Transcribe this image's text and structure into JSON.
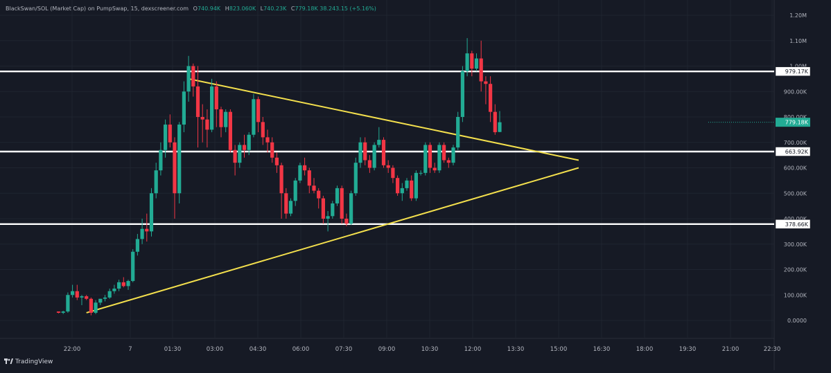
{
  "header": {
    "title": "BlackSwan/SOL (Market Cap) on PumpSwap, 15, dexscreener.com",
    "o_label": "O",
    "o_value": "740.94K",
    "h_label": "H",
    "h_value": "823.060K",
    "l_label": "L",
    "l_value": "740.23K",
    "c_label": "C",
    "c_value": "779.18K",
    "change": "38.243.15 (+5.16%)"
  },
  "brand": {
    "label": "TradingView"
  },
  "colors": {
    "background": "#161a25",
    "up": "#22ab94",
    "down": "#f23645",
    "level_line": "#ffffff",
    "trend_line": "#f4e04d",
    "current_price_bg": "#22ab94"
  },
  "chart_data": {
    "type": "candlestick",
    "interval": "15",
    "y_axis": {
      "scale": "linear",
      "range": [
        -60000,
        1250000
      ],
      "ticks": [
        0,
        100000,
        200000,
        300000,
        400000,
        500000,
        600000,
        700000,
        800000,
        900000,
        1000000,
        1100000,
        1200000
      ],
      "tick_labels": [
        "0.0000",
        "100.00K",
        "200.00K",
        "300.00K",
        "400.00K",
        "500.00K",
        "600.00K",
        "700.00K",
        "800.00K",
        "900.00K",
        "1.00M",
        "1.10M",
        "1.20M"
      ]
    },
    "x_axis": {
      "range": [
        "21:15",
        "22:45"
      ],
      "ticks": [
        "22:00",
        "7",
        "01:30",
        "03:00",
        "04:30",
        "06:00",
        "07:30",
        "09:00",
        "10:30",
        "12:00",
        "13:30",
        "15:00",
        "16:30",
        "18:00",
        "19:30",
        "21:00",
        "22:30"
      ]
    },
    "candles": [
      [
        35000,
        35000,
        28000,
        30000
      ],
      [
        30000,
        38000,
        25000,
        35000
      ],
      [
        35000,
        110000,
        30000,
        100000
      ],
      [
        100000,
        140000,
        90000,
        115000
      ],
      [
        115000,
        140000,
        80000,
        90000
      ],
      [
        90000,
        100000,
        60000,
        95000
      ],
      [
        95000,
        100000,
        80000,
        85000
      ],
      [
        85000,
        90000,
        20000,
        30000
      ],
      [
        30000,
        80000,
        25000,
        70000
      ],
      [
        70000,
        85000,
        60000,
        85000
      ],
      [
        85000,
        100000,
        75000,
        90000
      ],
      [
        90000,
        125000,
        85000,
        115000
      ],
      [
        115000,
        140000,
        105000,
        125000
      ],
      [
        125000,
        160000,
        115000,
        150000
      ],
      [
        150000,
        170000,
        130000,
        135000
      ],
      [
        135000,
        160000,
        120000,
        155000
      ],
      [
        155000,
        280000,
        150000,
        270000
      ],
      [
        270000,
        340000,
        255000,
        320000
      ],
      [
        320000,
        400000,
        300000,
        360000
      ],
      [
        360000,
        420000,
        310000,
        350000
      ],
      [
        350000,
        520000,
        330000,
        500000
      ],
      [
        500000,
        620000,
        480000,
        590000
      ],
      [
        590000,
        700000,
        570000,
        670000
      ],
      [
        670000,
        790000,
        640000,
        770000
      ],
      [
        770000,
        810000,
        680000,
        700000
      ],
      [
        700000,
        720000,
        400000,
        500000
      ],
      [
        500000,
        780000,
        460000,
        770000
      ],
      [
        770000,
        940000,
        740000,
        900000
      ],
      [
        900000,
        1040000,
        860000,
        1000000
      ],
      [
        1000000,
        1010000,
        880000,
        920000
      ],
      [
        920000,
        1000000,
        680000,
        800000
      ],
      [
        800000,
        850000,
        700000,
        790000
      ],
      [
        790000,
        830000,
        680000,
        750000
      ],
      [
        750000,
        950000,
        740000,
        920000
      ],
      [
        920000,
        940000,
        760000,
        830000
      ],
      [
        830000,
        840000,
        720000,
        760000
      ],
      [
        760000,
        830000,
        740000,
        820000
      ],
      [
        820000,
        830000,
        660000,
        670000
      ],
      [
        670000,
        690000,
        570000,
        620000
      ],
      [
        620000,
        700000,
        600000,
        690000
      ],
      [
        690000,
        730000,
        640000,
        670000
      ],
      [
        670000,
        740000,
        650000,
        730000
      ],
      [
        730000,
        890000,
        720000,
        870000
      ],
      [
        870000,
        880000,
        740000,
        780000
      ],
      [
        780000,
        800000,
        690000,
        720000
      ],
      [
        720000,
        750000,
        660000,
        700000
      ],
      [
        700000,
        720000,
        620000,
        640000
      ],
      [
        640000,
        660000,
        580000,
        610000
      ],
      [
        610000,
        620000,
        400000,
        500000
      ],
      [
        500000,
        520000,
        400000,
        420000
      ],
      [
        420000,
        480000,
        410000,
        470000
      ],
      [
        470000,
        560000,
        450000,
        550000
      ],
      [
        550000,
        620000,
        540000,
        610000
      ],
      [
        610000,
        640000,
        570000,
        590000
      ],
      [
        590000,
        600000,
        500000,
        530000
      ],
      [
        530000,
        560000,
        500000,
        510000
      ],
      [
        510000,
        520000,
        440000,
        480000
      ],
      [
        480000,
        490000,
        380000,
        400000
      ],
      [
        400000,
        430000,
        350000,
        410000
      ],
      [
        410000,
        470000,
        400000,
        460000
      ],
      [
        460000,
        530000,
        450000,
        520000
      ],
      [
        520000,
        530000,
        380000,
        400000
      ],
      [
        400000,
        420000,
        370000,
        380000
      ],
      [
        380000,
        510000,
        375000,
        500000
      ],
      [
        500000,
        640000,
        490000,
        620000
      ],
      [
        620000,
        720000,
        600000,
        700000
      ],
      [
        700000,
        720000,
        610000,
        630000
      ],
      [
        630000,
        650000,
        580000,
        600000
      ],
      [
        600000,
        700000,
        590000,
        690000
      ],
      [
        690000,
        760000,
        680000,
        710000
      ],
      [
        710000,
        720000,
        600000,
        610000
      ],
      [
        610000,
        630000,
        580000,
        600000
      ],
      [
        600000,
        610000,
        540000,
        560000
      ],
      [
        560000,
        570000,
        490000,
        500000
      ],
      [
        500000,
        540000,
        470000,
        520000
      ],
      [
        520000,
        560000,
        510000,
        550000
      ],
      [
        550000,
        570000,
        470000,
        480000
      ],
      [
        480000,
        590000,
        470000,
        580000
      ],
      [
        580000,
        590000,
        570000,
        580000
      ],
      [
        580000,
        700000,
        570000,
        690000
      ],
      [
        690000,
        700000,
        580000,
        600000
      ],
      [
        600000,
        620000,
        580000,
        590000
      ],
      [
        590000,
        700000,
        580000,
        690000
      ],
      [
        690000,
        700000,
        620000,
        630000
      ],
      [
        630000,
        640000,
        600000,
        620000
      ],
      [
        620000,
        690000,
        610000,
        680000
      ],
      [
        680000,
        820000,
        670000,
        800000
      ],
      [
        800000,
        1000000,
        780000,
        980000
      ],
      [
        980000,
        1110000,
        960000,
        1050000
      ],
      [
        1050000,
        1060000,
        960000,
        990000
      ],
      [
        990000,
        1050000,
        980000,
        1030000
      ],
      [
        1030000,
        1100000,
        900000,
        940000
      ],
      [
        940000,
        960000,
        850000,
        930000
      ],
      [
        930000,
        960000,
        780000,
        820000
      ],
      [
        820000,
        850000,
        730000,
        740000
      ],
      [
        740940,
        823060,
        740230,
        779180
      ]
    ],
    "price_levels": [
      {
        "value": 979170,
        "label": "979.17K"
      },
      {
        "value": 663920,
        "label": "663.92K"
      },
      {
        "value": 378660,
        "label": "378.66K"
      }
    ],
    "current_price": {
      "value": 779180,
      "label": "779.18K"
    },
    "trend_lines": [
      {
        "from": {
          "candle": 28,
          "value": 950000
        },
        "to": {
          "candle": 112,
          "value": 630000
        }
      },
      {
        "from": {
          "candle": 6,
          "value": 30000
        },
        "to": {
          "candle": 112,
          "value": 600000
        }
      }
    ]
  }
}
